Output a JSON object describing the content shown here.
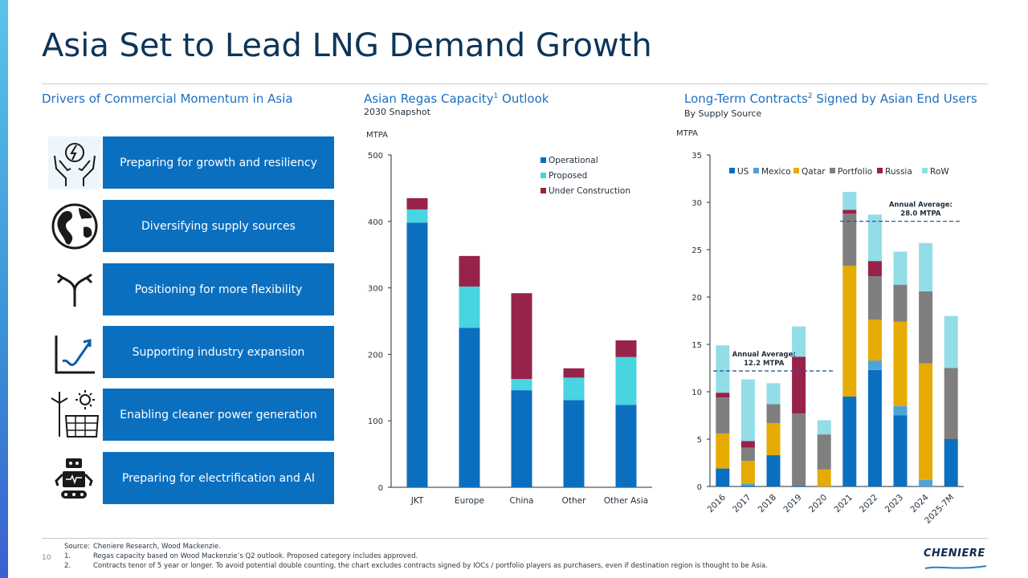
{
  "title": "Asia Set to Lead LNG Demand Growth",
  "page_number": "10",
  "colors": {
    "accent_blue": "#0b6fc0",
    "navy": "#0d3559",
    "title_blue": "#1c6fc4"
  },
  "left_section": {
    "heading": "Drivers of Commercial Momentum in Asia",
    "drivers": [
      {
        "icon": "hands-lightning-icon",
        "label": "Preparing for growth and resiliency"
      },
      {
        "icon": "globe-icon",
        "label": "Diversifying supply sources"
      },
      {
        "icon": "split-arrows-icon",
        "label": "Positioning for more flexibility"
      },
      {
        "icon": "growth-chart-icon",
        "label": "Supporting industry expansion"
      },
      {
        "icon": "wind-solar-icon",
        "label": "Enabling cleaner power generation"
      },
      {
        "icon": "robot-icon",
        "label": "Preparing for electrification and AI"
      }
    ]
  },
  "chart_data": [
    {
      "type": "bar",
      "stacked": true,
      "title": "Asian Regas Capacity",
      "title_sup": "1",
      "title_suffix": " Outlook",
      "subtitle": "2030 Snapshot",
      "ylabel": "MTPA",
      "ylim": [
        0,
        500
      ],
      "yticks": [
        0,
        100,
        200,
        300,
        400,
        500
      ],
      "categories": [
        "JKT",
        "Europe",
        "China",
        "Other",
        "Other Asia"
      ],
      "series": [
        {
          "name": "Operational",
          "color": "#0b6fc0",
          "values": [
            398,
            240,
            146,
            131,
            124
          ]
        },
        {
          "name": "Proposed",
          "color": "#48d4e0",
          "values": [
            20,
            62,
            17,
            34,
            72
          ]
        },
        {
          "name": "Under Construction",
          "color": "#97224a",
          "values": [
            17,
            46,
            129,
            14,
            25
          ]
        }
      ],
      "legend_position": "top-right"
    },
    {
      "type": "bar",
      "stacked": true,
      "title": "Long-Term Contracts",
      "title_sup": "2",
      "title_suffix": " Signed by Asian End Users",
      "subtitle": "By Supply Source",
      "ylabel": "MTPA",
      "ylim": [
        0,
        35
      ],
      "yticks": [
        0,
        5,
        10,
        15,
        20,
        25,
        30,
        35
      ],
      "categories": [
        "2016",
        "2017",
        "2018",
        "2019",
        "2020",
        "2021",
        "2022",
        "2023",
        "2024",
        "2025-7M"
      ],
      "series": [
        {
          "name": "US",
          "color": "#0b6fc0",
          "values": [
            1.9,
            0.1,
            3.3,
            0.1,
            0,
            9.5,
            12.3,
            7.5,
            0,
            5.0
          ]
        },
        {
          "name": "Mexico",
          "color": "#4fa3db",
          "values": [
            0,
            0.2,
            0,
            0,
            0,
            0,
            1.0,
            1.0,
            0.7,
            0
          ]
        },
        {
          "name": "Qatar",
          "color": "#e6ab02",
          "values": [
            3.7,
            2.4,
            3.4,
            0,
            1.8,
            13.8,
            4.3,
            8.9,
            12.3,
            0
          ]
        },
        {
          "name": "Portfolio",
          "color": "#7f7f7f",
          "values": [
            3.8,
            1.4,
            2.0,
            7.6,
            3.7,
            5.5,
            4.6,
            3.9,
            7.6,
            7.5
          ]
        },
        {
          "name": "Russia",
          "color": "#97224a",
          "values": [
            0.5,
            0.7,
            0,
            6.0,
            0,
            0.4,
            1.6,
            0,
            0,
            0
          ]
        },
        {
          "name": "RoW",
          "color": "#93dde8",
          "values": [
            5.0,
            6.5,
            2.2,
            3.2,
            1.5,
            1.9,
            4.9,
            3.5,
            5.1,
            5.5
          ]
        }
      ],
      "legend_position": "top",
      "annotations": [
        {
          "label_line1": "Annual Average:",
          "label_line2": "12.2 MTPA",
          "value": 12.2,
          "from_index": 0,
          "to_index": 4
        },
        {
          "label_line1": "Annual Average:",
          "label_line2": "28.0 MTPA",
          "value": 28.0,
          "from_index": 5,
          "to_index": 9
        }
      ]
    }
  ],
  "footer": {
    "notes": [
      {
        "key": "Source:",
        "text": "Cheniere Research, Wood Mackenzie."
      },
      {
        "key": "1.",
        "text": "Regas capacity based on Wood Mackenzie’s Q2 outlook. Proposed category includes approved."
      },
      {
        "key": "2.",
        "text": "Contracts tenor of 5 year or longer. To avoid potential double counting, the chart excludes contracts signed by IOCs / portfolio players as purchasers, even if destination region is thought to be Asia."
      }
    ],
    "logo_text": "CHENIERE"
  }
}
